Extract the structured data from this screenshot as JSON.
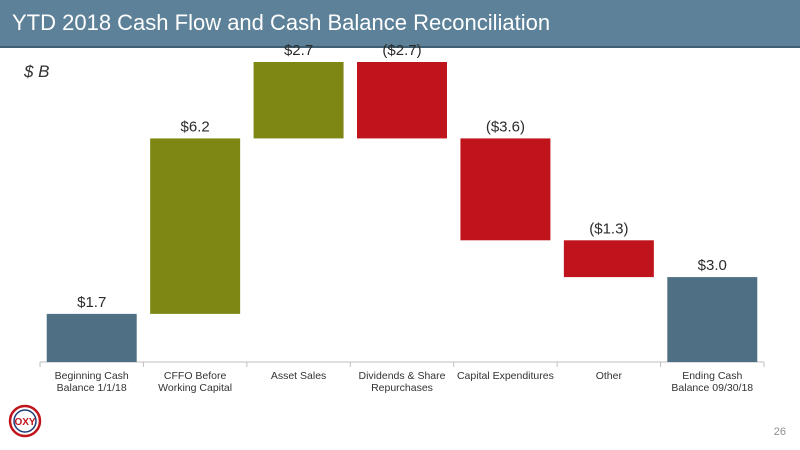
{
  "slide": {
    "title": "YTD 2018 Cash Flow and Cash Balance Reconciliation",
    "unit": "$ B",
    "page_number": "26",
    "logo_text": "OXY"
  },
  "colors": {
    "title_bar": "#5d8198",
    "balance": "#4f6f84",
    "increase": "#7e8714",
    "decrease": "#c0141c"
  },
  "chart_data": {
    "type": "bar",
    "subtype": "waterfall",
    "categories": [
      [
        "Beginning Cash",
        "Balance 1/1/18"
      ],
      [
        "CFFO Before",
        "Working Capital"
      ],
      [
        "Asset Sales"
      ],
      [
        "Dividends & Share",
        "Repurchases"
      ],
      [
        "Capital Expenditures"
      ],
      [
        "Other"
      ],
      [
        "Ending Cash",
        "Balance 09/30/18"
      ]
    ],
    "values": [
      1.7,
      6.2,
      2.7,
      -2.7,
      -3.6,
      -1.3,
      3.0
    ],
    "kinds": [
      "total",
      "increase",
      "increase",
      "decrease",
      "decrease",
      "decrease",
      "total"
    ],
    "data_labels": [
      "$1.7",
      "$6.2",
      "$2.7",
      "($2.7)",
      "($3.6)",
      "($1.3)",
      "$3.0"
    ],
    "title": "",
    "xlabel": "",
    "ylabel": "",
    "ylim": [
      0,
      10.6
    ],
    "grid": false,
    "legend": "none"
  }
}
